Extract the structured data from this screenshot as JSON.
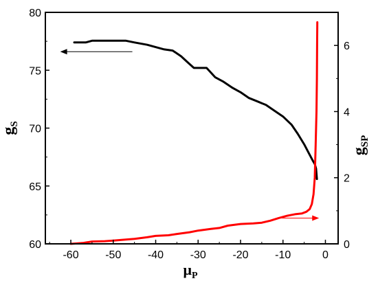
{
  "chart_data": {
    "type": "line",
    "xlim": [
      -66,
      3
    ],
    "x_ticks": [
      -60,
      -50,
      -40,
      -30,
      -20,
      -10,
      0
    ],
    "x_tick_labels": [
      "-60",
      "-50",
      "-40",
      "-30",
      "-20",
      "-10",
      "0"
    ],
    "xlabel": {
      "main": "μ",
      "sub": "P"
    },
    "left_axis": {
      "label": {
        "main": "g",
        "sub": "S"
      },
      "ylim": [
        60,
        80
      ],
      "ticks": [
        60,
        65,
        70,
        75,
        80
      ],
      "tick_labels": [
        "60",
        "65",
        "70",
        "75",
        "80"
      ]
    },
    "right_axis": {
      "label": {
        "main": "g",
        "sub": "SP"
      },
      "ylim": [
        0,
        7
      ],
      "ticks": [
        0,
        2,
        4,
        6
      ],
      "tick_labels": [
        "0",
        "2",
        "4",
        "6"
      ]
    },
    "series": [
      {
        "axis": "left",
        "color": "#000000",
        "x": [
          -59.2,
          -56.5,
          -55.0,
          -53.0,
          -50.0,
          -47.0,
          -45.0,
          -42.0,
          -40.0,
          -38.0,
          -36.0,
          -35.0,
          -34.0,
          -32.5,
          -31.0,
          -29.5,
          -28.0,
          -26.0,
          -24.0,
          -22.0,
          -20.0,
          -18.0,
          -16.0,
          -14.0,
          -12.0,
          -10.0,
          -8.0,
          -6.5,
          -5.0,
          -4.0,
          -3.0,
          -2.5,
          -2.2,
          -2.0
        ],
        "y": [
          77.4,
          77.4,
          77.55,
          77.55,
          77.55,
          77.55,
          77.4,
          77.2,
          77.0,
          76.8,
          76.7,
          76.45,
          76.2,
          75.7,
          75.2,
          75.2,
          75.2,
          74.4,
          74.0,
          73.5,
          73.1,
          72.6,
          72.3,
          72.0,
          71.5,
          71.0,
          70.3,
          69.5,
          68.6,
          67.9,
          67.2,
          66.9,
          66.5,
          65.6
        ]
      },
      {
        "axis": "right",
        "color": "#ff0000",
        "x": [
          -60.0,
          -57.0,
          -55.0,
          -52.0,
          -50.0,
          -48.0,
          -45.0,
          -42.0,
          -40.0,
          -37.0,
          -35.0,
          -32.0,
          -30.0,
          -27.0,
          -25.0,
          -23.0,
          -20.0,
          -17.0,
          -15.0,
          -13.0,
          -11.0,
          -9.0,
          -7.0,
          -5.5,
          -4.5,
          -3.7,
          -3.2,
          -2.8,
          -2.5,
          -2.3,
          -2.1,
          -2.0,
          -1.95,
          -1.9
        ],
        "y": [
          0.0,
          0.03,
          0.07,
          0.08,
          0.1,
          0.12,
          0.15,
          0.2,
          0.24,
          0.26,
          0.3,
          0.35,
          0.4,
          0.45,
          0.48,
          0.55,
          0.6,
          0.62,
          0.64,
          0.7,
          0.78,
          0.85,
          0.9,
          0.92,
          0.97,
          1.05,
          1.2,
          1.5,
          2.0,
          3.0,
          4.0,
          5.0,
          6.0,
          6.7
        ]
      }
    ],
    "annotations": [
      {
        "type": "arrow",
        "direction": "left",
        "color": "#000000",
        "axis": "left",
        "x_from": -45.5,
        "x_to": -62.5,
        "y": 76.6
      },
      {
        "type": "arrow",
        "direction": "right",
        "color": "#ff0000",
        "axis": "right",
        "x_from": -10.5,
        "x_to": -1.5,
        "y": 0.78
      }
    ]
  }
}
